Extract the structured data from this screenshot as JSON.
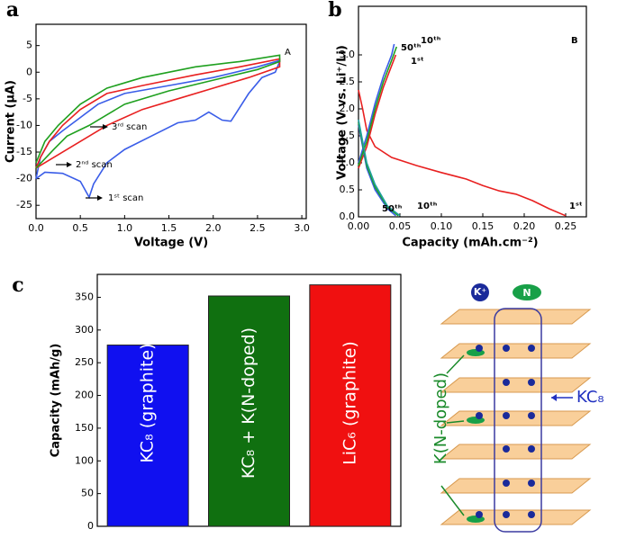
{
  "chart_data": [
    {
      "type": "line",
      "panel_label": "a",
      "x_label": "Voltage (V)",
      "y_label": "Current (μA)",
      "xlim": [
        0,
        3.05
      ],
      "ylim": [
        -27.5,
        9
      ],
      "xticks": [
        {
          "value": 0,
          "label": "0.0"
        },
        0.5,
        {
          "value": 1,
          "label": "1.0"
        },
        1.5,
        {
          "value": 2,
          "label": "2.0"
        },
        2.5,
        {
          "value": 3,
          "label": "3.0"
        }
      ],
      "yticks": [
        5,
        0,
        -5,
        -10,
        -15,
        -20,
        -25
      ],
      "annotations": [
        "A",
        "1ˢᵗ scan",
        "2ⁿᵈ scan",
        "3ʳᵈ scan"
      ],
      "series": [
        {
          "color": "#3a5de8",
          "x": [
            0,
            0.1,
            0.3,
            0.5,
            0.6,
            0.65,
            0.8,
            1.0,
            1.3,
            1.6,
            1.8,
            1.95,
            2.1,
            2.2,
            2.4,
            2.55,
            2.7,
            2.75,
            2.75,
            2.5,
            2.0,
            1.5,
            1.0,
            0.7,
            0.5,
            0.3,
            0.15,
            0.05,
            0
          ],
          "values": [
            -20,
            -18.8,
            -19,
            -20.5,
            -23.5,
            -21,
            -17,
            -14.5,
            -12,
            -9.5,
            -9,
            -7.5,
            -9,
            -9.2,
            -4,
            -1,
            0,
            2,
            2.2,
            1,
            -1,
            -2.5,
            -4,
            -6,
            -8.5,
            -11,
            -13,
            -16,
            -20
          ]
        },
        {
          "color": "#e82020",
          "x": [
            0,
            0.2,
            0.5,
            0.8,
            1.2,
            1.6,
            2.0,
            2.4,
            2.75,
            2.75,
            2.3,
            1.8,
            1.2,
            0.8,
            0.5,
            0.3,
            0.15,
            0.05,
            0
          ],
          "values": [
            -18,
            -16,
            -13,
            -10,
            -7,
            -5,
            -3,
            -1,
            1,
            2.5,
            1,
            -0.5,
            -2.5,
            -4,
            -7,
            -10,
            -13,
            -16,
            -18
          ]
        },
        {
          "color": "#1fa01f",
          "x": [
            0,
            0.2,
            0.35,
            0.6,
            1.0,
            1.5,
            2.0,
            2.5,
            2.75,
            2.75,
            2.3,
            1.8,
            1.2,
            0.8,
            0.5,
            0.25,
            0.1,
            0
          ],
          "values": [
            -18,
            -14.5,
            -12,
            -10,
            -6,
            -3.5,
            -1.5,
            0.5,
            2,
            3.2,
            2,
            1,
            -1,
            -3,
            -6,
            -10,
            -13,
            -17
          ]
        }
      ]
    },
    {
      "type": "line",
      "panel_label": "b",
      "x_label": "Capacity (mAh.cm⁻²)",
      "y_label": "Voltage (V vs. Li⁺/Li)",
      "xlim": [
        0,
        0.275
      ],
      "ylim": [
        0,
        3.9
      ],
      "xticks": [
        {
          "value": 0,
          "label": "0.00"
        },
        0.05,
        {
          "value": 0.1,
          "label": "0.10"
        },
        0.15,
        {
          "value": 0.2,
          "label": "0.20"
        },
        0.25
      ],
      "yticks": [
        {
          "value": 0,
          "label": "0.0"
        },
        0.5,
        {
          "value": 1,
          "label": "1.0"
        },
        1.5,
        {
          "value": 2,
          "label": "2.0"
        },
        2.5,
        {
          "value": 3,
          "label": "3.0"
        }
      ],
      "annotations": [
        "B",
        "50ᵗʰ",
        "10ᵗʰ",
        "1ˢᵗ",
        "50ᵗʰ",
        "10ᵗʰ",
        "1ˢᵗ"
      ],
      "series": [
        {
          "color": "#e82020",
          "x": [
            0,
            0.005,
            0.01,
            0.02,
            0.04,
            0.07,
            0.1,
            0.13,
            0.15,
            0.17,
            0.19,
            0.21,
            0.23,
            0.25
          ],
          "values": [
            2.35,
            2.0,
            1.6,
            1.3,
            1.1,
            0.95,
            0.82,
            0.7,
            0.58,
            0.48,
            0.42,
            0.3,
            0.15,
            0.02
          ]
        },
        {
          "color": "#e82020",
          "x": [
            0,
            0.01,
            0.02,
            0.03,
            0.04,
            0.045
          ],
          "values": [
            0.9,
            1.3,
            1.9,
            2.4,
            2.8,
            3.0
          ]
        },
        {
          "color": "#3a5de8",
          "x": [
            0,
            0.01,
            0.02,
            0.035,
            0.045
          ],
          "values": [
            1.7,
            0.9,
            0.5,
            0.15,
            0.02
          ]
        },
        {
          "color": "#3a5de8",
          "x": [
            0,
            0.01,
            0.02,
            0.03,
            0.04,
            0.043
          ],
          "values": [
            1.0,
            1.5,
            2.1,
            2.6,
            3.0,
            3.2
          ]
        },
        {
          "color": "#1fa01f",
          "x": [
            0,
            0.01,
            0.02,
            0.035,
            0.048
          ],
          "values": [
            1.75,
            0.95,
            0.55,
            0.18,
            0.02
          ]
        },
        {
          "color": "#1fa01f",
          "x": [
            0,
            0.01,
            0.02,
            0.03,
            0.04,
            0.046
          ],
          "values": [
            0.95,
            1.4,
            2.0,
            2.5,
            2.9,
            3.15
          ]
        },
        {
          "color": "#20a0a0",
          "x": [
            0,
            0.01,
            0.02,
            0.035,
            0.05
          ],
          "values": [
            1.8,
            1.0,
            0.6,
            0.2,
            0.02
          ]
        }
      ]
    },
    {
      "type": "bar",
      "panel_label": "c",
      "y_label": "Capacity (mAh/g)",
      "ylim": [
        0,
        385
      ],
      "yticks": [
        0,
        50,
        100,
        150,
        200,
        250,
        300,
        350
      ],
      "categories": [
        "KC₈ (graphite)",
        "KC₈ + K(N-doped)",
        "LiC₆ (graphite)"
      ],
      "values": [
        277,
        352,
        369
      ],
      "colors": [
        "#1010f0",
        "#107010",
        "#f01010"
      ]
    }
  ],
  "schematic": {
    "ion_label": "K⁺",
    "dopant_label": "N",
    "doped_label": "K(N-doped)",
    "intercalated_label": "KC₈"
  }
}
